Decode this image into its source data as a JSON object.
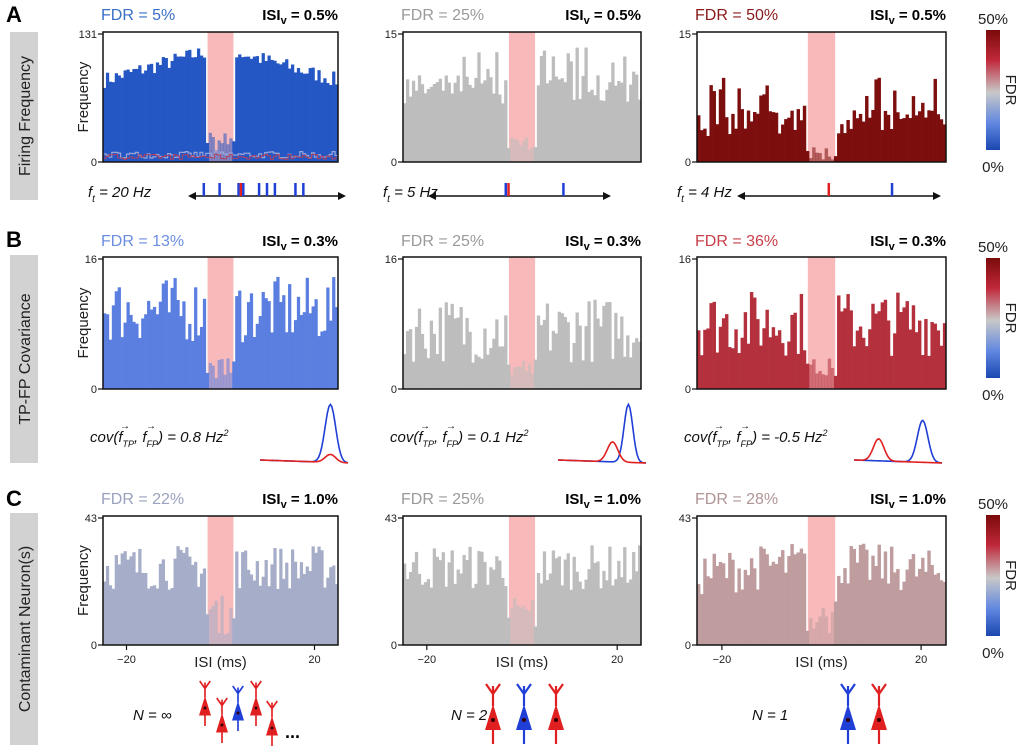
{
  "figure": {
    "rows": [
      {
        "letter": "A",
        "side_label": "Firing Frequency",
        "ylabel": "Frequency",
        "panels": [
          {
            "fdr_label": "FDR = 5%",
            "isi_label": "ISI",
            "isi_sub": "v",
            "isi_value": " = 0.5%",
            "ymax_label": "131",
            "ymin_label": "0",
            "fdr_color": "#3a6fc8",
            "bar_color": "#2456c4",
            "caption": "= 20 Hz",
            "caption_var": "f",
            "caption_sub": "t"
          },
          {
            "fdr_label": "FDR = 25%",
            "isi_label": "ISI",
            "isi_sub": "v",
            "isi_value": " = 0.5%",
            "ymax_label": "15",
            "ymin_label": "0",
            "fdr_color": "#9a9a9a",
            "bar_color": "#bdbdbd",
            "caption": "= 5 Hz",
            "caption_var": "f",
            "caption_sub": "t"
          },
          {
            "fdr_label": "FDR = 50%",
            "isi_label": "ISI",
            "isi_sub": "v",
            "isi_value": " = 0.5%",
            "ymax_label": "15",
            "ymin_label": "0",
            "fdr_color": "#8a1a1a",
            "bar_color": "#7c0e0e",
            "caption": "= 4 Hz",
            "caption_var": "f",
            "caption_sub": "t"
          }
        ]
      },
      {
        "letter": "B",
        "side_label": "TP-FP Covariance",
        "ylabel": "Frequency",
        "panels": [
          {
            "fdr_label": "FDR = 13%",
            "isi_label": "ISI",
            "isi_sub": "v",
            "isi_value": " = 0.3%",
            "ymax_label": "16",
            "ymin_label": "0",
            "fdr_color": "#6b8de0",
            "bar_color": "#5b7fe0",
            "caption": "cov(f",
            "caption_value": ") = 0.8 Hz",
            "caption_sup": "2",
            "sub1": "TP",
            "sub2": "FP"
          },
          {
            "fdr_label": "FDR = 25%",
            "isi_label": "ISI",
            "isi_sub": "v",
            "isi_value": " = 0.3%",
            "ymax_label": "16",
            "ymin_label": "0",
            "fdr_color": "#9a9a9a",
            "bar_color": "#bdbdbd",
            "caption": "cov(f",
            "caption_value": ") = 0.1 Hz",
            "caption_sup": "2",
            "sub1": "TP",
            "sub2": "FP"
          },
          {
            "fdr_label": "FDR = 36%",
            "isi_label": "ISI",
            "isi_sub": "v",
            "isi_value": " = 0.3%",
            "ymax_label": "16",
            "ymin_label": "0",
            "fdr_color": "#c8404a",
            "bar_color": "#b3303c",
            "caption": "cov(f",
            "caption_value": ") = -0.5 Hz",
            "caption_sup": "2",
            "sub1": "TP",
            "sub2": "FP"
          }
        ]
      },
      {
        "letter": "C",
        "side_label": "Contaminant Neuron(s)",
        "ylabel": "Frequency",
        "xlabel": "ISI (ms)",
        "xticks": [
          "−20",
          "20"
        ],
        "panels": [
          {
            "fdr_label": "FDR = 22%",
            "isi_label": "ISI",
            "isi_sub": "v",
            "isi_value": " = 1.0%",
            "ymax_label": "43",
            "ymin_label": "0",
            "fdr_color": "#9aa2bd",
            "bar_color": "#a6adc8",
            "caption": "N = ∞",
            "ellipsis": "..."
          },
          {
            "fdr_label": "FDR = 25%",
            "isi_label": "ISI",
            "isi_sub": "v",
            "isi_value": " = 1.0%",
            "ymax_label": "43",
            "ymin_label": "0",
            "fdr_color": "#9a9a9a",
            "bar_color": "#bdbdbd",
            "caption": "N = 2"
          },
          {
            "fdr_label": "FDR = 28%",
            "isi_label": "ISI",
            "isi_sub": "v",
            "isi_value": " = 1.0%",
            "ymax_label": "43",
            "ymin_label": "0",
            "fdr_color": "#b09595",
            "bar_color": "#bf9c9e",
            "caption": "N = 1"
          }
        ]
      }
    ],
    "colorbar": {
      "top_label": "50%",
      "bottom_label": "0%",
      "title": "FDR",
      "colors": [
        "#7a0a0a",
        "#c0283a",
        "#c8c8c8",
        "#5f86e0",
        "#1a47b0"
      ]
    },
    "refractory_color": "#f7b9b9",
    "tp_color": "#1f3fd6",
    "fp_color": "#e02020"
  },
  "chart_data": [
    {
      "type": "bar",
      "title": "FDR = 5%  ISIv = 0.5%",
      "xlabel": "ISI (ms)",
      "ylabel": "Frequency",
      "ylim": [
        0,
        131
      ],
      "xlim": [
        -25,
        25
      ],
      "refractory_window_ms": [
        -2.5,
        2.5
      ],
      "approx_shape": "symmetric, rising from ~80 at edges to ~115 near center, ~8 inside refractory window",
      "firing_rate_hz": 20
    },
    {
      "type": "bar",
      "title": "FDR = 25%  ISIv = 0.5%",
      "xlabel": "ISI (ms)",
      "ylabel": "Frequency",
      "ylim": [
        0,
        15
      ],
      "xlim": [
        -25,
        25
      ],
      "approx_shape": "noisy, ~6-14 outside window, ~1-3 inside",
      "firing_rate_hz": 5
    },
    {
      "type": "bar",
      "title": "FDR = 50%  ISIv = 0.5%",
      "xlabel": "ISI (ms)",
      "ylabel": "Frequency",
      "ylim": [
        0,
        15
      ],
      "xlim": [
        -25,
        25
      ],
      "approx_shape": "noisy, ~2-9 outside window, ~0-2 inside",
      "firing_rate_hz": 4
    },
    {
      "type": "bar",
      "title": "FDR = 13%  ISIv = 0.3%",
      "ylim": [
        0,
        16
      ],
      "xlim": [
        -25,
        25
      ],
      "covariance_hz2": 0.8
    },
    {
      "type": "bar",
      "title": "FDR = 25%  ISIv = 0.3%",
      "ylim": [
        0,
        16
      ],
      "xlim": [
        -25,
        25
      ],
      "covariance_hz2": 0.1
    },
    {
      "type": "bar",
      "title": "FDR = 36%  ISIv = 0.3%",
      "ylim": [
        0,
        16
      ],
      "xlim": [
        -25,
        25
      ],
      "covariance_hz2": -0.5
    },
    {
      "type": "bar",
      "title": "FDR = 22%  ISIv = 1.0%",
      "ylim": [
        0,
        43
      ],
      "xlim": [
        -25,
        25
      ],
      "xticks": [
        -20,
        20
      ],
      "contaminant_neurons": "infinite"
    },
    {
      "type": "bar",
      "title": "FDR = 25%  ISIv = 1.0%",
      "ylim": [
        0,
        43
      ],
      "xlim": [
        -25,
        25
      ],
      "xticks": [
        -20,
        20
      ],
      "contaminant_neurons": 2
    },
    {
      "type": "bar",
      "title": "FDR = 28%  ISIv = 1.0%",
      "ylim": [
        0,
        43
      ],
      "xlim": [
        -25,
        25
      ],
      "xticks": [
        -20,
        20
      ],
      "contaminant_neurons": 1
    }
  ]
}
